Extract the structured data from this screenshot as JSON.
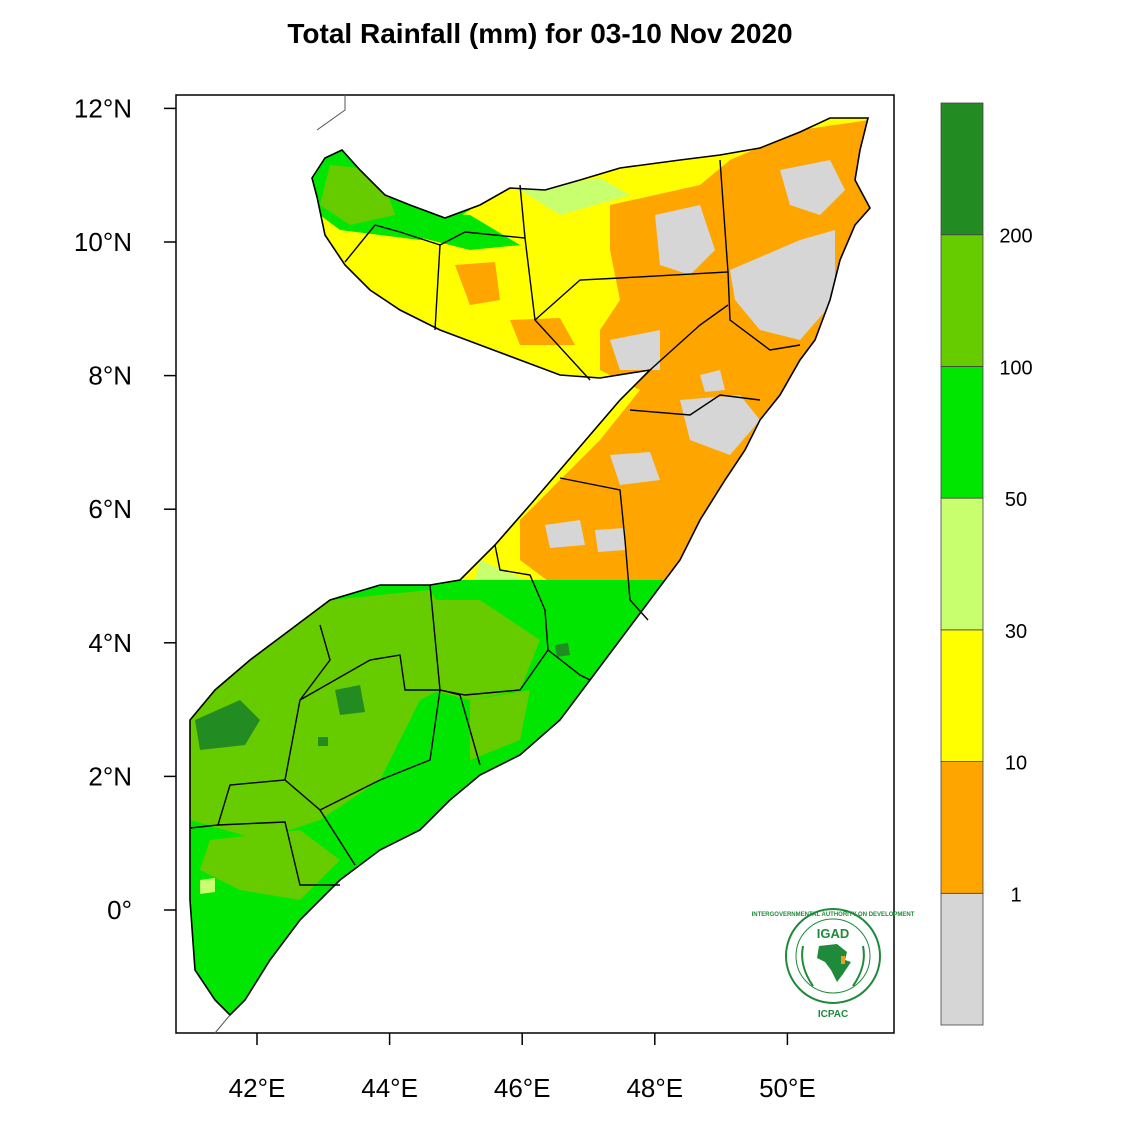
{
  "title": "Total Rainfall (mm) for 03-10 Nov 2020",
  "axes": {
    "x_ticks": [
      {
        "value": 42,
        "label": "42°E"
      },
      {
        "value": 44,
        "label": "44°E"
      },
      {
        "value": 46,
        "label": "46°E"
      },
      {
        "value": 48,
        "label": "48°E"
      },
      {
        "value": 50,
        "label": "50°E"
      }
    ],
    "y_ticks": [
      {
        "value": 12,
        "label": "12°N"
      },
      {
        "value": 10,
        "label": "10°N"
      },
      {
        "value": 8,
        "label": "8°N"
      },
      {
        "value": 6,
        "label": "6°N"
      },
      {
        "value": 4,
        "label": "4°N"
      },
      {
        "value": 2,
        "label": "2°N"
      },
      {
        "value": 0,
        "label": "0°"
      }
    ],
    "lon_range": [
      40.8,
      51.6
    ],
    "lat_range": [
      -1.85,
      12.2
    ]
  },
  "colorbar": {
    "bins": [
      {
        "color": "#d6d6d6"
      },
      {
        "color": "#ffa500"
      },
      {
        "color": "#ffff00"
      },
      {
        "color": "#c8ff6e"
      },
      {
        "color": "#00e600"
      },
      {
        "color": "#66cc00"
      },
      {
        "color": "#228b22"
      }
    ],
    "labels": [
      "1",
      "10",
      "30",
      "50",
      "100",
      "200"
    ]
  },
  "logo": {
    "name": "IGAD",
    "org": "ICPAC",
    "ring_text": "INTERGOVERNMENTAL AUTHORITY ON DEVELOPMENT"
  }
}
